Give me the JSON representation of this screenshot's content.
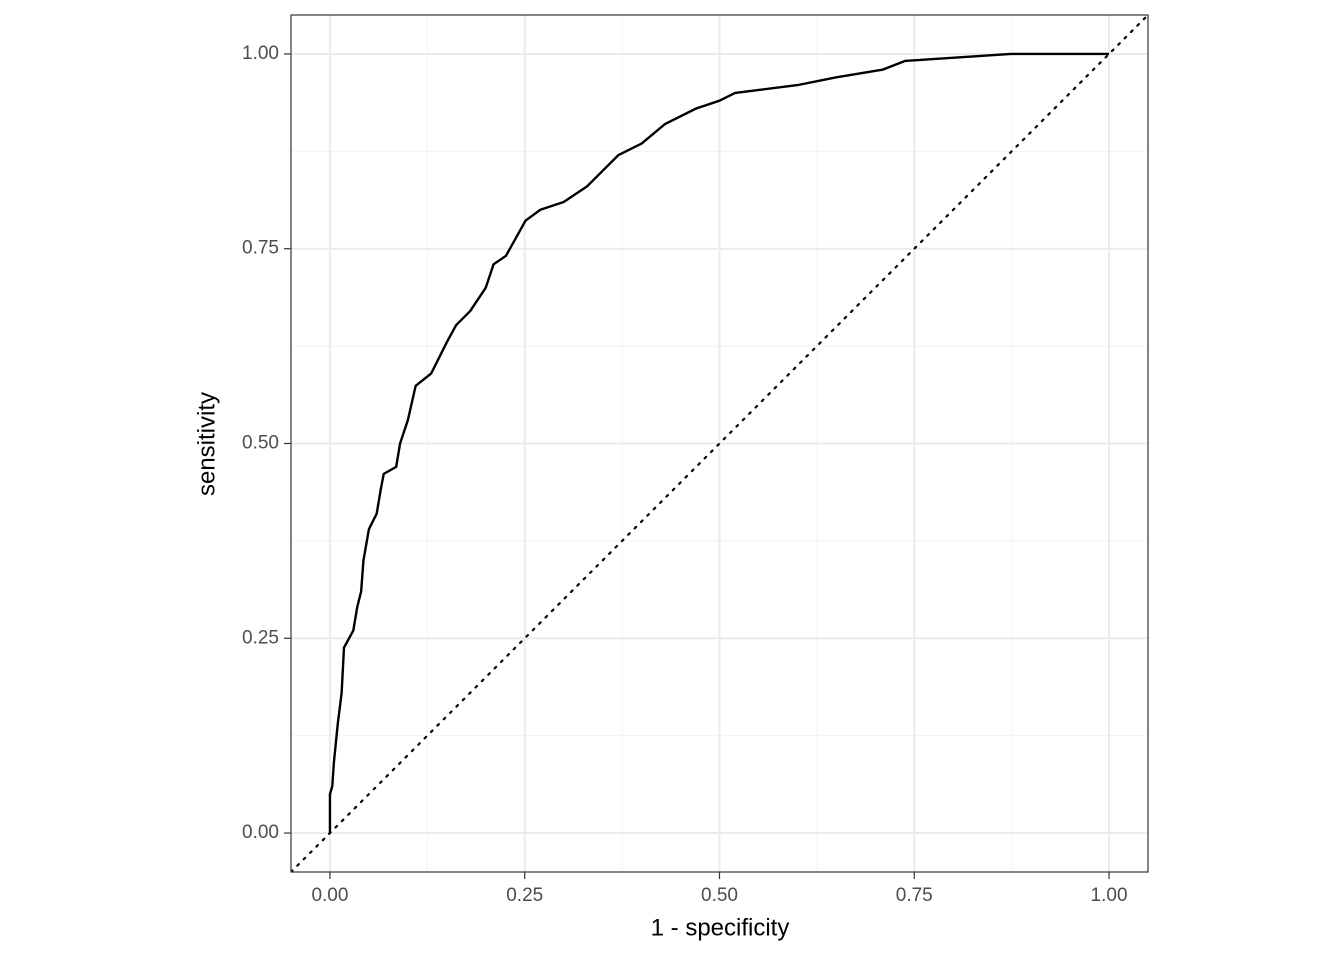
{
  "chart_data": {
    "type": "line",
    "x_label": "1 - specificity",
    "y_label": "sensitivity",
    "xlim": [
      -0.05,
      1.05
    ],
    "ylim": [
      -0.05,
      1.05
    ],
    "xticks": [
      {
        "value": 0,
        "label": "0.00"
      },
      {
        "value": 0.25,
        "label": "0.25"
      },
      {
        "value": 0.5,
        "label": "0.50"
      },
      {
        "value": 0.75,
        "label": "0.75"
      },
      {
        "value": 1,
        "label": "1.00"
      }
    ],
    "yticks": [
      {
        "value": 0,
        "label": "0.00"
      },
      {
        "value": 0.25,
        "label": "0.25"
      },
      {
        "value": 0.5,
        "label": "0.50"
      },
      {
        "value": 0.75,
        "label": "0.75"
      },
      {
        "value": 1,
        "label": "1.00"
      }
    ],
    "minor_grid": [
      0.125,
      0.375,
      0.625,
      0.875
    ],
    "grid": true,
    "reference_line": {
      "slope": 1,
      "intercept": 0,
      "style": "dotted"
    },
    "color": "#000000",
    "x": [
      0,
      0,
      0.003,
      0.005,
      0.01,
      0.015,
      0.018,
      0.03,
      0.035,
      0.04,
      0.043,
      0.05,
      0.06,
      0.065,
      0.069,
      0.085,
      0.09,
      0.1,
      0.11,
      0.13,
      0.15,
      0.162,
      0.18,
      0.2,
      0.21,
      0.226,
      0.251,
      0.27,
      0.3,
      0.33,
      0.35,
      0.37,
      0.4,
      0.43,
      0.47,
      0.5,
      0.52,
      0.6,
      0.65,
      0.71,
      0.738,
      0.874,
      1.0
    ],
    "values": [
      0,
      0.05,
      0.06,
      0.09,
      0.14,
      0.18,
      0.238,
      0.26,
      0.29,
      0.31,
      0.35,
      0.39,
      0.41,
      0.44,
      0.461,
      0.47,
      0.5,
      0.53,
      0.574,
      0.59,
      0.63,
      0.652,
      0.67,
      0.7,
      0.73,
      0.741,
      0.786,
      0.8,
      0.81,
      0.83,
      0.85,
      0.87,
      0.885,
      0.91,
      0.93,
      0.94,
      0.95,
      0.96,
      0.97,
      0.98,
      0.991,
      1.0,
      1.0
    ]
  }
}
